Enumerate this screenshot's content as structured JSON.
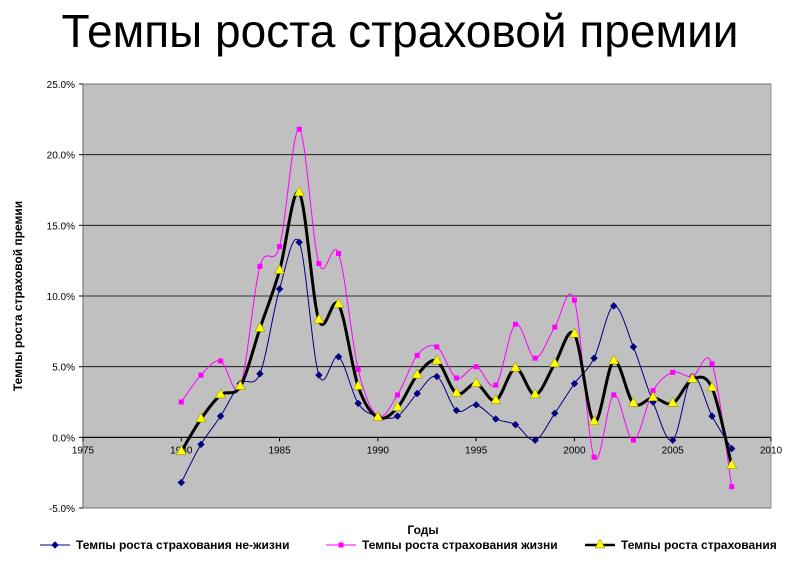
{
  "title": "Темпы роста страховой премии",
  "chart_data": {
    "type": "line",
    "ylabel": "Темпы роста страховой премии",
    "xlabel": "Годы",
    "xlim": [
      1975,
      2010
    ],
    "ylim": [
      -0.05,
      0.25
    ],
    "x_ticks": [
      "1975",
      "1980",
      "1985",
      "1990",
      "1995",
      "2000",
      "2005",
      "2010"
    ],
    "y_ticks": [
      "-5.0%",
      "0.0%",
      "5.0%",
      "10.0%",
      "15.0%",
      "20.0%",
      "25.0%"
    ],
    "grid": true,
    "smooth": true,
    "legend_position": "bottom",
    "plot_background": "#c0c0c0",
    "series": [
      {
        "name": "Темпы роста страхования не-жизни",
        "color": "#000080",
        "marker": "diamond",
        "x": [
          1980,
          1981,
          1982,
          1983,
          1984,
          1985,
          1986,
          1987,
          1988,
          1989,
          1990,
          1991,
          1992,
          1993,
          1994,
          1995,
          1996,
          1997,
          1998,
          1999,
          2000,
          2001,
          2002,
          2003,
          2004,
          2005,
          2006,
          2007,
          2008
        ],
        "y": [
          -0.032,
          -0.005,
          0.015,
          0.038,
          0.045,
          0.105,
          0.138,
          0.044,
          0.057,
          0.024,
          0.015,
          0.015,
          0.031,
          0.043,
          0.019,
          0.023,
          0.013,
          0.009,
          -0.002,
          0.017,
          0.038,
          0.056,
          0.093,
          0.064,
          0.025,
          -0.002,
          0.043,
          0.015,
          -0.008
        ]
      },
      {
        "name": "Темпы роста страхования жизни",
        "color": "#ff00ff",
        "marker": "square",
        "x": [
          1980,
          1981,
          1982,
          1983,
          1984,
          1985,
          1986,
          1987,
          1988,
          1989,
          1990,
          1991,
          1992,
          1993,
          1994,
          1995,
          1996,
          1997,
          1998,
          1999,
          2000,
          2001,
          2002,
          2003,
          2004,
          2005,
          2006,
          2007,
          2008
        ],
        "y": [
          0.025,
          0.044,
          0.054,
          0.036,
          0.121,
          0.135,
          0.218,
          0.123,
          0.13,
          0.048,
          0.015,
          0.03,
          0.058,
          0.064,
          0.042,
          0.05,
          0.037,
          0.08,
          0.056,
          0.078,
          0.097,
          -0.014,
          0.03,
          -0.002,
          0.033,
          0.046,
          0.043,
          0.052,
          -0.035
        ]
      },
      {
        "name": "Темпы роста страхования",
        "color": "#000000",
        "marker": "triangle",
        "marker_color": "#ffff00",
        "x": [
          1980,
          1981,
          1982,
          1983,
          1984,
          1985,
          1986,
          1987,
          1988,
          1989,
          1990,
          1991,
          1992,
          1993,
          1994,
          1995,
          1996,
          1997,
          1998,
          1999,
          2000,
          2001,
          2002,
          2003,
          2004,
          2005,
          2006,
          2007,
          2008
        ],
        "y": [
          -0.01,
          0.013,
          0.03,
          0.036,
          0.077,
          0.118,
          0.173,
          0.083,
          0.094,
          0.036,
          0.014,
          0.021,
          0.044,
          0.054,
          0.031,
          0.038,
          0.026,
          0.049,
          0.03,
          0.052,
          0.073,
          0.011,
          0.054,
          0.024,
          0.028,
          0.024,
          0.041,
          0.035,
          -0.02
        ]
      }
    ]
  }
}
